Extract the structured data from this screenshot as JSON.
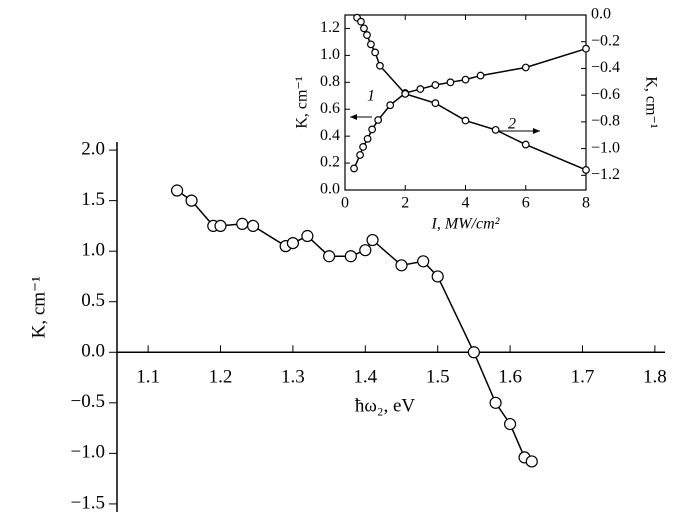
{
  "chart_data": [
    {
      "type": "line",
      "xlabel": "ħω₂, eV",
      "ylabel": "K, cm⁻¹",
      "color": "#000000",
      "x": [
        1.14,
        1.16,
        1.19,
        1.2,
        1.23,
        1.245,
        1.29,
        1.3,
        1.32,
        1.35,
        1.38,
        1.4,
        1.41,
        1.45,
        1.48,
        1.5,
        1.55,
        1.58,
        1.6,
        1.62,
        1.63
      ],
      "values": [
        1.6,
        1.5,
        1.25,
        1.25,
        1.27,
        1.25,
        1.05,
        1.08,
        1.15,
        0.95,
        0.95,
        1.01,
        1.11,
        0.86,
        0.9,
        0.75,
        0.0,
        -0.5,
        -0.71,
        -1.04,
        -1.08
      ],
      "xlim": [
        1.057,
        1.814
      ],
      "ylim": [
        -1.58,
        2.08
      ],
      "xticks": [
        1.1,
        1.2,
        1.3,
        1.4,
        1.5,
        1.6,
        1.7,
        1.8
      ],
      "yticks": [
        {
          "value": 2,
          "label": "2.0"
        },
        {
          "value": 1.5,
          "label": "1.5"
        },
        {
          "value": 1,
          "label": "1.0"
        },
        {
          "value": 0.5,
          "label": "0.5"
        },
        {
          "value": 0,
          "label": "0.0"
        },
        {
          "value": -0.5,
          "label": "−0.5"
        },
        {
          "value": -1,
          "label": "−1.0"
        },
        {
          "value": -1.5,
          "label": "−1.5"
        }
      ]
    },
    {
      "type": "line",
      "xlabel": "I, MW/cm²",
      "ylabel": "K, cm⁻¹",
      "y2label": "K, cm⁻¹",
      "color": "#000000",
      "series": [
        {
          "name": "1",
          "x": [
            0.3,
            0.5,
            0.6,
            0.75,
            0.9,
            1.1,
            1.5,
            2,
            2.5,
            3,
            3.5,
            4,
            4.5,
            6,
            8
          ],
          "values": [
            0.16,
            0.26,
            0.32,
            0.38,
            0.45,
            0.52,
            0.63,
            0.72,
            0.75,
            0.78,
            0.8,
            0.82,
            0.85,
            0.91,
            1.05
          ]
        },
        {
          "name": "2",
          "axis": "y2",
          "x": [
            0.4,
            0.53,
            0.63,
            0.73,
            0.86,
            1.0,
            1.16,
            2,
            3,
            4,
            5,
            6,
            8
          ],
          "values": [
            -0.02,
            -0.05,
            -0.1,
            -0.15,
            -0.22,
            -0.28,
            -0.38,
            -0.59,
            -0.66,
            -0.79,
            -0.86,
            -0.97,
            -1.16
          ]
        }
      ],
      "xlim": [
        0,
        8
      ],
      "ylim": [
        0,
        1.3
      ],
      "y2lim": [
        -1.31,
        0
      ],
      "xticks": [
        0,
        2,
        4,
        6,
        8
      ],
      "yticks": [
        {
          "value": 0,
          "label": "0.0"
        },
        0.2,
        0.4,
        0.6,
        0.8,
        {
          "value": 1,
          "label": "1.0"
        },
        1.2
      ],
      "y2ticks": [
        {
          "value": 0,
          "label": "0.0"
        },
        {
          "value": -0.2,
          "label": "−0.2"
        },
        {
          "value": -0.4,
          "label": "−0.4"
        },
        {
          "value": -0.6,
          "label": "−0.6"
        },
        {
          "value": -0.8,
          "label": "−0.8"
        },
        {
          "value": -1,
          "label": "−1.0"
        },
        {
          "value": -1.2,
          "label": "−1.2"
        }
      ]
    }
  ]
}
